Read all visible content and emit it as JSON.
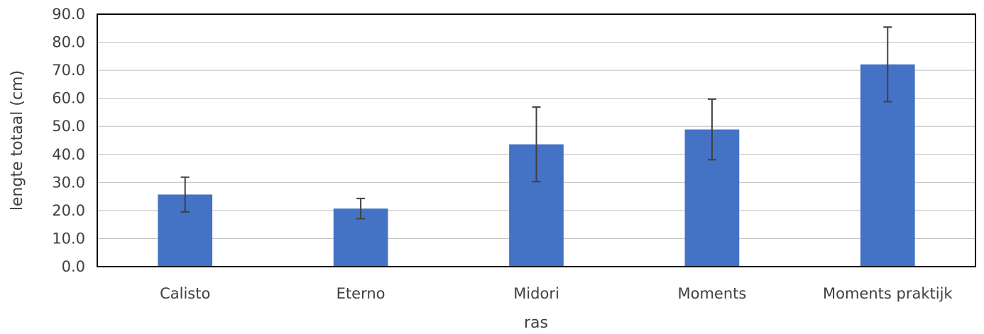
{
  "chart_data": {
    "type": "bar",
    "title": "",
    "xlabel": "ras",
    "ylabel": "lengte totaal (cm)",
    "categories": [
      "Calisto",
      "Eterno",
      "Midori",
      "Moments",
      "Moments praktijk"
    ],
    "values": [
      25.7,
      20.7,
      43.6,
      48.9,
      72.1
    ],
    "error": [
      6.2,
      3.6,
      13.3,
      10.8,
      13.3
    ],
    "ylim": [
      0,
      90
    ],
    "ytick_step": 10,
    "ytick_labels": [
      "0.0",
      "10.0",
      "20.0",
      "30.0",
      "40.0",
      "50.0",
      "60.0",
      "70.0",
      "80.0",
      "90.0"
    ],
    "grid": true,
    "legend": "none",
    "bar_color": "#4472C4",
    "error_color": "#404040",
    "grid_color": "#BFBFBF",
    "text_color": "#404040"
  }
}
